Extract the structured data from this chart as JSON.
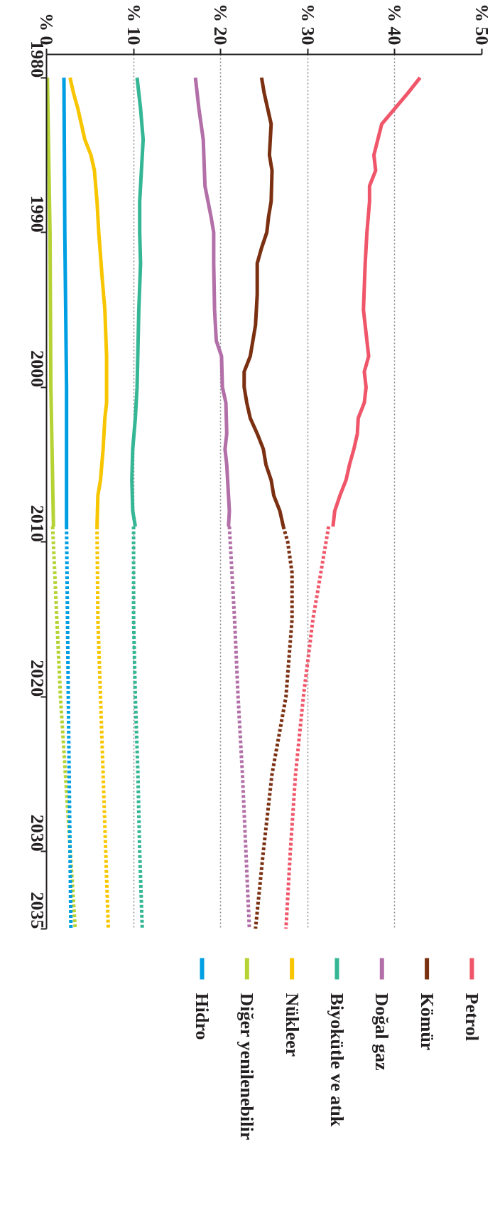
{
  "chart_data": {
    "type": "line",
    "orientation": "horizontal",
    "ylim": [
      2035,
      1978.5
    ],
    "yticks": [
      1980,
      1990,
      2000,
      2010,
      2020,
      2030,
      2035
    ],
    "xlim": [
      0,
      50
    ],
    "xticks": [
      {
        "value": 0,
        "label": "% 0"
      },
      {
        "value": 10,
        "label": "% 10"
      },
      {
        "value": 20,
        "label": "% 20"
      },
      {
        "value": 30,
        "label": "% 30"
      },
      {
        "value": 40,
        "label": "% 40"
      },
      {
        "value": 50,
        "label": "% 50"
      }
    ],
    "grid": "x",
    "legend": "bottom",
    "line_style": "solid",
    "marker": "none",
    "series": [
      {
        "name": "Petrol",
        "color": "#f0566a",
        "x": [
          1980,
          1981,
          1982,
          1983,
          1985,
          1986,
          1987,
          1988,
          1990,
          1992,
          1995,
          1996,
          1997,
          1998,
          1999,
          2000,
          2001,
          2002,
          2003,
          2004,
          2005,
          2006,
          2007,
          2008,
          2009
        ],
        "values": [
          42.9,
          41.5,
          40.0,
          38.5,
          37.6,
          37.8,
          37.1,
          37.1,
          36.8,
          36.6,
          36.4,
          36.6,
          36.8,
          37.0,
          36.5,
          36.7,
          36.5,
          35.8,
          35.7,
          35.3,
          34.8,
          34.4,
          33.7,
          33.1,
          32.9
        ]
      },
      {
        "name": "Kömür",
        "color": "#7b3012",
        "x": [
          1980,
          1981,
          1983,
          1985,
          1986,
          1988,
          1989,
          1990,
          1991,
          1992,
          1994,
          1996,
          1997,
          1998,
          1999,
          2000,
          2001,
          2002,
          2003,
          2004,
          2005,
          2006,
          2007,
          2008,
          2009
        ],
        "values": [
          24.7,
          25.0,
          25.8,
          25.6,
          25.9,
          25.8,
          25.5,
          25.3,
          24.7,
          24.2,
          24.2,
          24.0,
          23.7,
          23.4,
          22.7,
          22.7,
          23.0,
          23.4,
          24.2,
          24.9,
          25.2,
          25.8,
          26.1,
          26.8,
          27.2
        ]
      },
      {
        "name": "Doğal gaz",
        "color": "#b26fa8",
        "x": [
          1980,
          1982,
          1984,
          1987,
          1989,
          1990,
          1992,
          1995,
          1997,
          1998,
          2000,
          2001,
          2003,
          2004,
          2005,
          2007,
          2008,
          2009
        ],
        "values": [
          17.1,
          17.5,
          18.0,
          18.2,
          18.9,
          19.2,
          19.2,
          19.3,
          19.5,
          20.1,
          20.2,
          20.6,
          20.7,
          20.5,
          20.7,
          20.9,
          21.0,
          20.9
        ]
      },
      {
        "name": "Biyokütle ve atık",
        "color": "#35b795",
        "x": [
          1980,
          1982,
          1984,
          1986,
          1988,
          1990,
          1992,
          1995,
          2000,
          2002,
          2004,
          2006,
          2008,
          2009
        ],
        "values": [
          10.4,
          10.8,
          11.1,
          10.9,
          10.7,
          10.7,
          10.8,
          10.6,
          10.4,
          10.2,
          9.9,
          9.8,
          9.9,
          10.2
        ]
      },
      {
        "name": "Nükleer",
        "color": "#f7c600",
        "x": [
          1980,
          1981,
          1982,
          1984,
          1985,
          1986,
          1988,
          1990,
          1993,
          1995,
          1998,
          2000,
          2001,
          2002,
          2004,
          2006,
          2007,
          2009
        ],
        "values": [
          2.7,
          3.1,
          3.6,
          4.4,
          5.1,
          5.5,
          5.8,
          6.0,
          6.4,
          6.7,
          6.9,
          6.9,
          6.9,
          6.7,
          6.5,
          6.2,
          5.9,
          5.8
        ]
      },
      {
        "name": "Diğer yenilenebilir",
        "color": "#b5d334",
        "x": [
          1980,
          1990,
          2000,
          2009
        ],
        "values": [
          0.1,
          0.4,
          0.5,
          0.8
        ]
      },
      {
        "name": "Hidro",
        "color": "#009fe3",
        "x": [
          1980,
          1990,
          2000,
          2009
        ],
        "values": [
          2.0,
          2.1,
          2.3,
          2.3
        ]
      },
      {
        "color": "#f0566a",
        "line_style": "dashed",
        "x": [
          2009,
          2015,
          2020,
          2025,
          2030,
          2035
        ],
        "values": [
          32.4,
          30.6,
          29.5,
          28.6,
          28.0,
          27.5
        ]
      },
      {
        "color": "#7b3012",
        "line_style": "dashed",
        "x": [
          2009,
          2010,
          2012,
          2015,
          2020,
          2025,
          2030,
          2035
        ],
        "values": [
          27.2,
          27.7,
          28.2,
          28.2,
          27.5,
          25.9,
          24.9,
          24.0
        ]
      },
      {
        "color": "#b26fa8",
        "line_style": "dashed",
        "x": [
          2009,
          2015,
          2020,
          2025,
          2030,
          2035
        ],
        "values": [
          21.0,
          21.6,
          22.0,
          22.5,
          22.9,
          23.3
        ]
      },
      {
        "color": "#35b795",
        "line_style": "dashed",
        "x": [
          2009,
          2015,
          2020,
          2025,
          2030,
          2035
        ],
        "values": [
          10.0,
          10.0,
          10.2,
          10.5,
          10.7,
          11.0
        ]
      },
      {
        "color": "#f7c600",
        "line_style": "dashed",
        "x": [
          2009,
          2015,
          2020,
          2025,
          2030,
          2035
        ],
        "values": [
          5.8,
          5.9,
          6.2,
          6.5,
          6.8,
          7.1
        ]
      },
      {
        "color": "#b5d334",
        "line_style": "dashed",
        "x": [
          2009,
          2020,
          2035
        ],
        "values": [
          0.7,
          1.6,
          3.3
        ]
      },
      {
        "color": "#009fe3",
        "line_style": "dashed",
        "x": [
          2009,
          2020,
          2035
        ],
        "values": [
          2.3,
          2.5,
          2.8
        ]
      }
    ]
  }
}
